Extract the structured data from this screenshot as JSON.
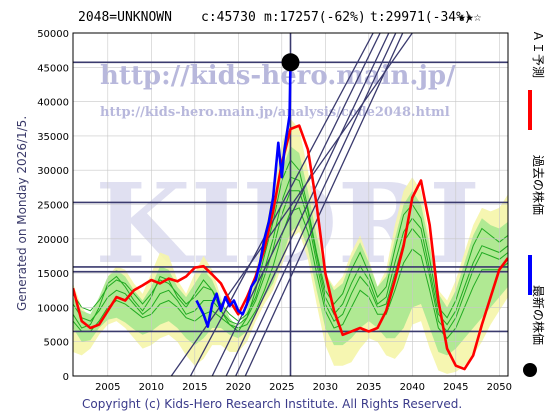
{
  "header": {
    "code_name": "2048=UNKNOWN",
    "c_value": "c:45730",
    "m_value": "m:17257(-62%)",
    "t_value": "t:29971(-34%)",
    "stars": "★★☆"
  },
  "generated_text": "Generated on Monday 2026/1/5.",
  "footer": "Copyright (c) Kids-Hero Research Institute. All Rights Reserved.",
  "watermark": {
    "url1": "http://kids-hero.main.jp/",
    "url2": "http://kids-hero.main.jp/analysis/code2048.html",
    "big": "KIDRI"
  },
  "legend": [
    {
      "label": "ＡＩ予測",
      "color": "#ff0000"
    },
    {
      "label": "過去の株価",
      "color": "#0000ff"
    },
    {
      "label": "最新の株価",
      "color": "#000000"
    }
  ],
  "chart_data": {
    "type": "line",
    "title": "",
    "xlabel": "",
    "ylabel": "",
    "xlim": [
      2001,
      2051
    ],
    "ylim": [
      0,
      50000
    ],
    "x_ticks": [
      2005,
      2010,
      2015,
      2020,
      2025,
      2030,
      2035,
      2040,
      2045,
      2050
    ],
    "y_ticks": [
      0,
      5000,
      10000,
      15000,
      20000,
      25000,
      30000,
      35000,
      40000,
      45000,
      50000
    ],
    "horizontal_lines": [
      45730,
      25300,
      15900,
      15200,
      6500
    ],
    "vertical_line": 2026,
    "latest_point": {
      "x": 2026,
      "y": 45730
    },
    "trend_lines": [
      {
        "x": [
          2014.5,
          2035.5
        ],
        "y": [
          0,
          50000
        ]
      },
      {
        "x": [
          2017,
          2036.3
        ],
        "y": [
          0,
          50000
        ]
      },
      {
        "x": [
          2018.6,
          2037.3
        ],
        "y": [
          0,
          50000
        ]
      },
      {
        "x": [
          2019.7,
          2038.1
        ],
        "y": [
          0,
          50000
        ]
      },
      {
        "x": [
          2020.8,
          2038.9
        ],
        "y": [
          0,
          50000
        ]
      },
      {
        "x": [
          2012.3,
          2040
        ],
        "y": [
          0,
          50000
        ]
      }
    ],
    "series": [
      {
        "name": "ＡＩ予測",
        "color": "#ff0000",
        "x": [
          2001,
          2002,
          2003,
          2004,
          2005,
          2006,
          2007,
          2008,
          2009,
          2010,
          2011,
          2012,
          2013,
          2014,
          2015,
          2016,
          2017,
          2018,
          2019,
          2020,
          2021,
          2022,
          2023,
          2024,
          2025,
          2026,
          2027,
          2028,
          2029,
          2030,
          2031,
          2032,
          2033,
          2034,
          2035,
          2036,
          2037,
          2038,
          2039,
          2040,
          2041,
          2042,
          2043,
          2044,
          2045,
          2046,
          2047,
          2048,
          2049,
          2050,
          2051
        ],
        "y": [
          12800,
          8000,
          7000,
          7500,
          9500,
          11500,
          11000,
          12500,
          13200,
          14000,
          13500,
          14200,
          13800,
          14500,
          15800,
          16000,
          14800,
          13500,
          11000,
          9000,
          11500,
          14500,
          18500,
          24000,
          31000,
          36000,
          36500,
          33000,
          25000,
          15000,
          9500,
          6000,
          6500,
          7000,
          6500,
          7000,
          9500,
          14000,
          19000,
          26000,
          28500,
          22000,
          11000,
          4000,
          1500,
          1000,
          3000,
          7500,
          11500,
          15500,
          17200
        ]
      },
      {
        "name": "過去の株価",
        "color": "#0000ff",
        "x": [
          2015.2,
          2016,
          2016.5,
          2017,
          2017.5,
          2018,
          2018.5,
          2019,
          2019.5,
          2020,
          2020.5,
          2021,
          2021.5,
          2022,
          2022.5,
          2023,
          2023.5,
          2024,
          2024.3,
          2024.6,
          2025,
          2025.3,
          2025.6,
          2025.9,
          2026
        ],
        "y": [
          11000,
          9000,
          7200,
          10500,
          12000,
          9500,
          11500,
          10200,
          11000,
          9500,
          9000,
          10500,
          13000,
          14000,
          16500,
          20000,
          22500,
          26000,
          30000,
          34000,
          29000,
          33000,
          35500,
          38000,
          45730
        ]
      }
    ],
    "bands": [
      {
        "color": "#f5f5a8",
        "upper": [
          13500,
          10000,
          8500,
          11000,
          14500,
          16000,
          15500,
          13500,
          12000,
          15000,
          18000,
          17500,
          14000,
          12000,
          15000,
          17500,
          15500,
          11500,
          8500,
          6500,
          10000,
          15500,
          21000,
          27000,
          34000,
          37500,
          36000,
          30000,
          22000,
          15000,
          13000,
          14500,
          18000,
          20500,
          17000,
          13000,
          15500,
          22000,
          27000,
          29000,
          27000,
          20000,
          12500,
          11000,
          14000,
          18000,
          22000,
          24500,
          24000,
          24500,
          26500
        ],
        "lower": [
          3500,
          3000,
          4000,
          6000,
          7500,
          8000,
          7000,
          5500,
          4000,
          4500,
          5500,
          6000,
          5000,
          3000,
          1500,
          2500,
          4500,
          4500,
          3500,
          3500,
          5000,
          8000,
          10500,
          12500,
          16000,
          20000,
          21000,
          17000,
          10500,
          4500,
          1500,
          1500,
          2000,
          4000,
          5500,
          5000,
          3000,
          2500,
          4000,
          7500,
          8000,
          4000,
          800,
          300,
          600,
          1500,
          3000,
          5000,
          7500,
          9500,
          11500
        ]
      },
      {
        "color": "#a8e890",
        "upper": [
          11500,
          9500,
          9000,
          11500,
          14500,
          15500,
          14500,
          12500,
          11000,
          13000,
          16000,
          15500,
          13000,
          11500,
          13500,
          15500,
          14000,
          11000,
          8500,
          7000,
          9500,
          14000,
          19000,
          24000,
          30000,
          33500,
          32500,
          27000,
          20500,
          15000,
          12500,
          13500,
          17000,
          19500,
          16500,
          13000,
          14500,
          20000,
          25000,
          27000,
          25000,
          19000,
          12000,
          10000,
          12500,
          16500,
          20500,
          23000,
          22000,
          21500,
          22500
        ],
        "lower": [
          7000,
          5000,
          5200,
          7000,
          8200,
          8500,
          7800,
          6800,
          6000,
          6500,
          7500,
          8000,
          7000,
          5500,
          4500,
          5500,
          7000,
          7000,
          6000,
          5500,
          6500,
          9000,
          11500,
          13500,
          17000,
          21000,
          22000,
          18500,
          12500,
          7000,
          4500,
          4500,
          5500,
          7000,
          8000,
          7000,
          5500,
          5500,
          7000,
          10000,
          10500,
          7000,
          3500,
          3000,
          4000,
          5500,
          7000,
          8500,
          10000,
          11500,
          13000
        ]
      }
    ],
    "green_lines": [
      [
        9000,
        7000,
        7500,
        10000,
        13500,
        14500,
        13000,
        11000,
        9500,
        11500,
        14500,
        14000,
        11500,
        10000,
        12000,
        14000,
        12500,
        9500,
        7500,
        6500,
        8500,
        12500,
        17500,
        22500,
        28500,
        31500,
        30000,
        24500,
        18000,
        12500,
        10500,
        12000,
        15500,
        18000,
        15000,
        11500,
        13000,
        18500,
        23500,
        25000,
        23000,
        17000,
        10000,
        8500,
        11000,
        15000,
        19000,
        21500,
        20500,
        19500,
        20500
      ],
      [
        10500,
        8500,
        8000,
        9500,
        11500,
        12500,
        12000,
        10500,
        9000,
        10000,
        12000,
        12500,
        11000,
        9000,
        9500,
        11000,
        11000,
        9500,
        8000,
        7500,
        8500,
        11000,
        14500,
        18500,
        23500,
        27000,
        27000,
        23000,
        16500,
        10500,
        8000,
        9000,
        12000,
        14500,
        13000,
        10000,
        10500,
        15000,
        19500,
        21500,
        20000,
        14500,
        8000,
        6500,
        8500,
        12000,
        15500,
        18000,
        17500,
        17000,
        18000
      ],
      [
        8000,
        6500,
        6500,
        8000,
        10000,
        11000,
        10500,
        9500,
        8500,
        9000,
        10500,
        11000,
        10000,
        8500,
        8000,
        9000,
        9500,
        8500,
        7500,
        7000,
        7500,
        9500,
        12500,
        16000,
        20500,
        24000,
        24500,
        21000,
        15000,
        9500,
        7000,
        7500,
        10000,
        12500,
        11500,
        9000,
        9000,
        12500,
        16500,
        18500,
        17500,
        12500,
        7000,
        5500,
        7000,
        10000,
        13000,
        15500,
        15500,
        15500,
        16500
      ],
      [
        12000,
        10000,
        9500,
        11000,
        13000,
        14000,
        13500,
        12000,
        10500,
        12000,
        14000,
        13500,
        12000,
        10500,
        11500,
        13000,
        12500,
        10500,
        9000,
        8000,
        9000,
        11500,
        15500,
        20000,
        25500,
        29000,
        28500,
        24000,
        17500,
        11500,
        9000,
        10500,
        13500,
        16000,
        14000,
        10500,
        11500,
        16500,
        21000,
        23000,
        21500,
        15500,
        9000,
        7500,
        9500,
        13000,
        16500,
        19000,
        18500,
        18000,
        19000
      ]
    ]
  }
}
